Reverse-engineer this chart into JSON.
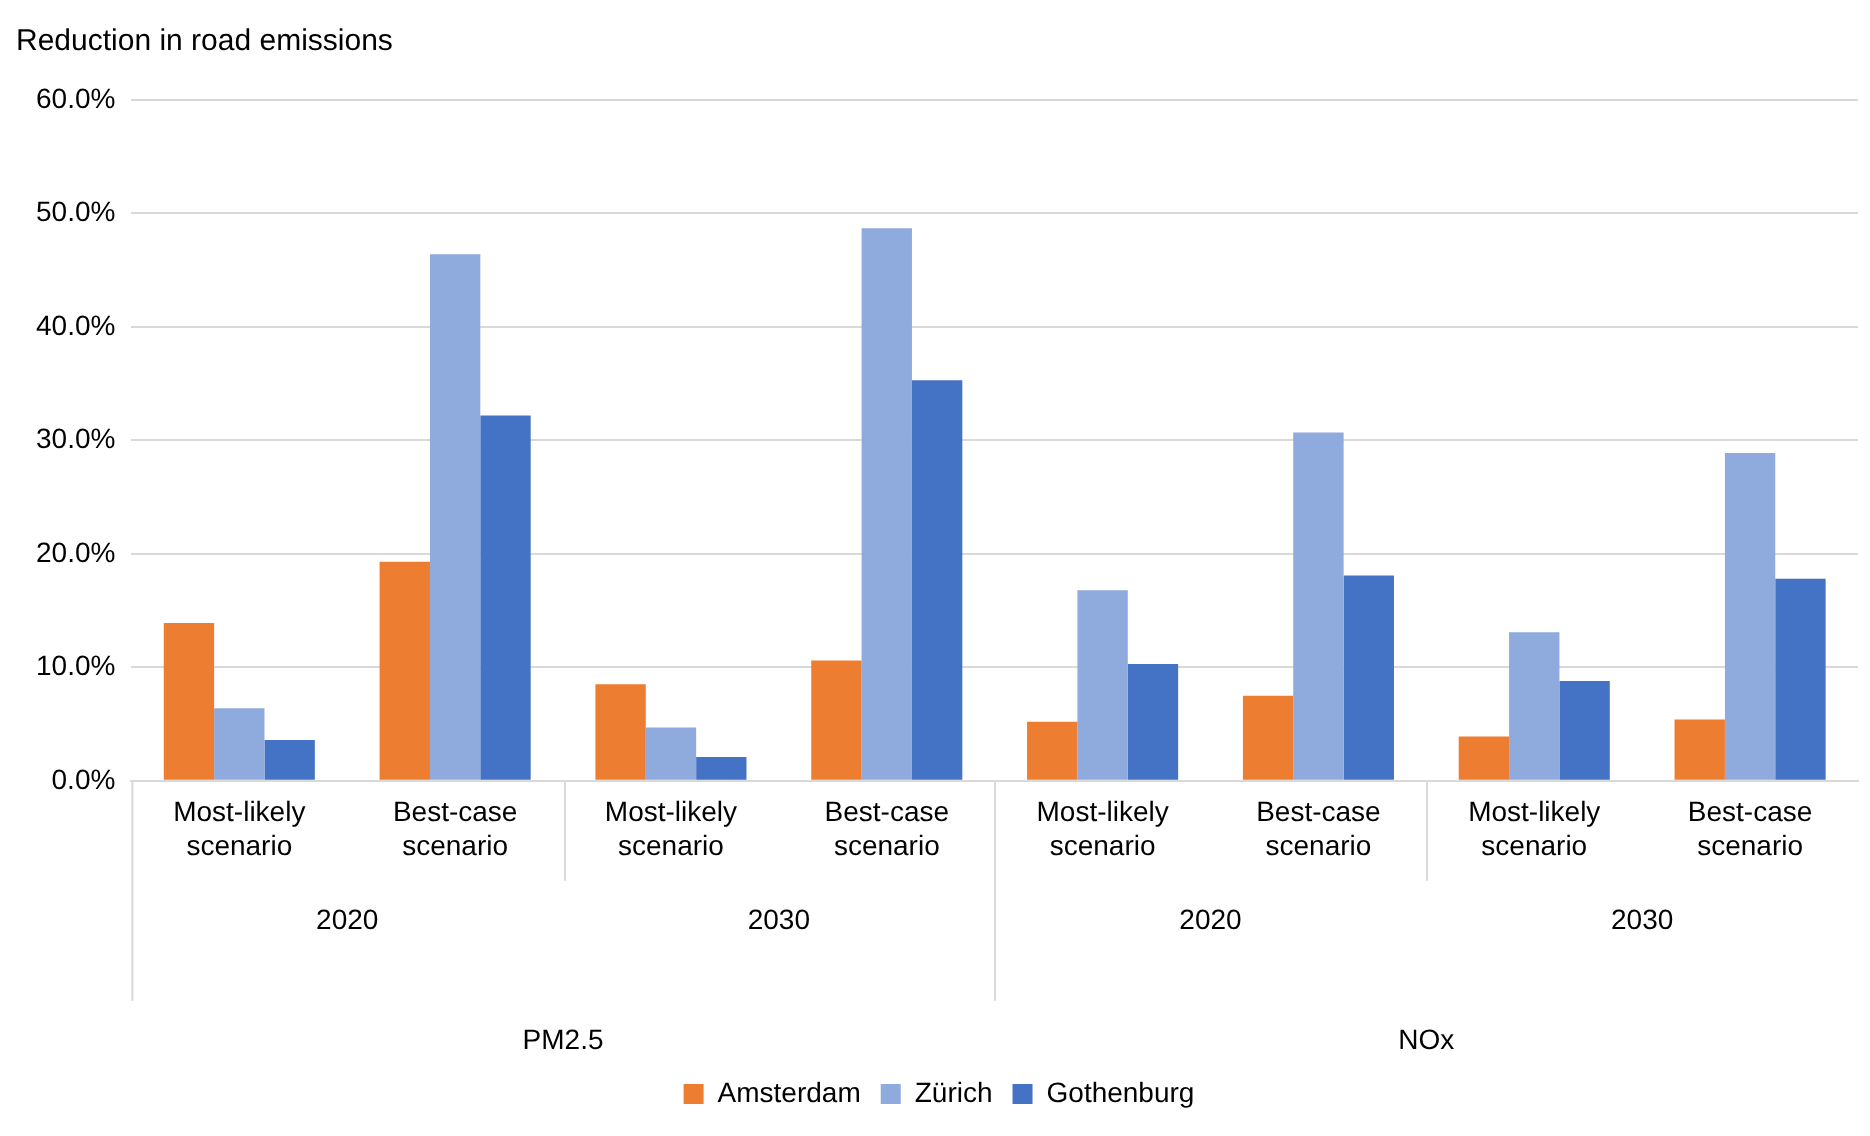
{
  "chart_data": {
    "type": "bar",
    "ylabel": "Reduction in road emissions",
    "categories": [
      "Most-likely scenario",
      "Best-case scenario",
      "Most-likely scenario",
      "Best-case scenario",
      "Most-likely scenario",
      "Best-case scenario",
      "Most-likely scenario",
      "Best-case scenario"
    ],
    "series": [
      {
        "name": "Amsterdam",
        "color": "#ed7d31",
        "values": [
          13.9,
          19.3,
          8.5,
          10.6,
          5.2,
          7.5,
          3.9,
          5.4
        ]
      },
      {
        "name": "Zürich",
        "color": "#8faadc",
        "values": [
          6.4,
          46.4,
          4.7,
          48.7,
          16.8,
          30.7,
          13.1,
          28.9
        ]
      },
      {
        "name": "Gothenburg",
        "color": "#4472c4",
        "values": [
          3.6,
          32.2,
          2.1,
          35.3,
          10.3,
          18.1,
          8.8,
          17.8
        ]
      }
    ],
    "annotations": [
      "2020",
      "2030",
      "2020",
      "2030",
      "PM2.5",
      "NOx"
    ],
    "ylim": [
      0,
      60
    ],
    "yticks": [
      {
        "value": 0,
        "label": "0.0%"
      },
      {
        "value": 10,
        "label": "10.0%"
      },
      {
        "value": 20,
        "label": "20.0%"
      },
      {
        "value": 30,
        "label": "30.0%"
      },
      {
        "value": 40,
        "label": "40.0%"
      },
      {
        "value": 50,
        "label": "50.0%"
      },
      {
        "value": 60,
        "label": "60.0%"
      }
    ],
    "grid": "y",
    "legend": "bottom"
  }
}
